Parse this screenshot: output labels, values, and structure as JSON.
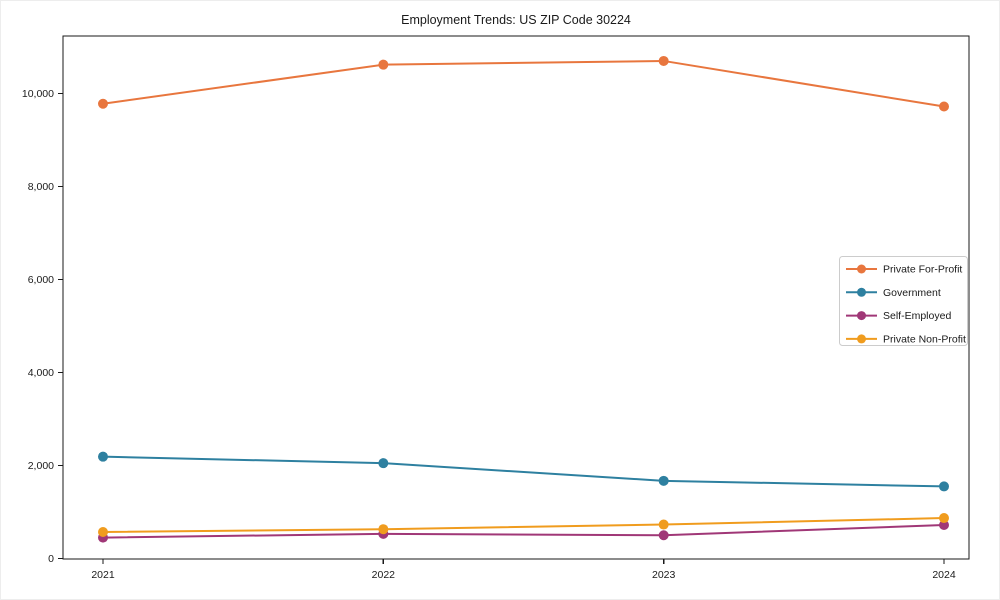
{
  "title": "Employment Trends: US ZIP Code 30224",
  "chart_data": {
    "type": "line",
    "title": "Employment Trends: US ZIP Code 30224",
    "x": [
      2021,
      2022,
      2023,
      2024
    ],
    "xtick_labels": [
      "2021",
      "2022",
      "2023",
      "2024"
    ],
    "yticks": [
      0,
      2000,
      4000,
      6000,
      8000,
      10000
    ],
    "ytick_labels": [
      "0",
      "2,000",
      "4,000",
      "6,000",
      "8,000",
      "10,000"
    ],
    "ylim": [
      0,
      11240
    ],
    "xlabel": "",
    "ylabel": "",
    "grid": false,
    "marker": "circle",
    "legend_position": "right-center",
    "series": [
      {
        "name": "Private For-Profit",
        "color": "#e8763e",
        "values": [
          9780,
          10620,
          10700,
          9720
        ]
      },
      {
        "name": "Government",
        "color": "#2e80a0",
        "values": [
          2190,
          2050,
          1670,
          1550
        ]
      },
      {
        "name": "Self-Employed",
        "color": "#a03777",
        "values": [
          450,
          530,
          500,
          720
        ]
      },
      {
        "name": "Private Non-Profit",
        "color": "#f09c1e",
        "values": [
          570,
          630,
          730,
          870
        ]
      }
    ]
  },
  "colors": {
    "axis": "#1a1a1a",
    "legend_border": "#cccccc",
    "background": "#ffffff"
  }
}
